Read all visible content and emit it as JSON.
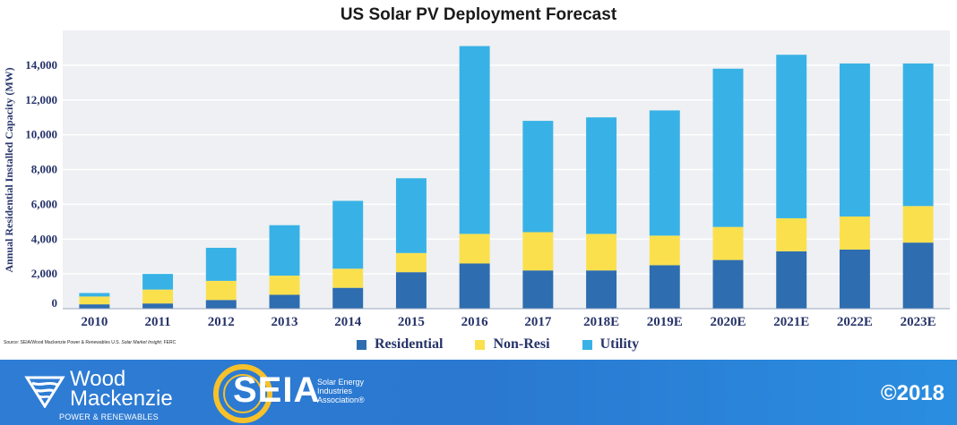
{
  "chart_data": {
    "type": "bar",
    "stacked": true,
    "title": "US Solar PV Deployment Forecast",
    "xlabel": "",
    "ylabel": "Annual Residential Installed Capacity (MW)",
    "ylim": [
      0,
      16000
    ],
    "yticks": [
      0,
      2000,
      4000,
      6000,
      8000,
      10000,
      12000,
      14000
    ],
    "ytick_labels": [
      "0",
      "2,000",
      "4,000",
      "6,000",
      "8,000",
      "10,000",
      "12,000",
      "14,000"
    ],
    "grid": true,
    "legend_position": "bottom",
    "categories": [
      "2010",
      "2011",
      "2012",
      "2013",
      "2014",
      "2015",
      "2016",
      "2017",
      "2018E",
      "2019E",
      "2020E",
      "2021E",
      "2022E",
      "2023E"
    ],
    "series": [
      {
        "name": "Residential",
        "color": "#2e6daf",
        "values": [
          250,
          300,
          500,
          800,
          1200,
          2100,
          2600,
          2200,
          2200,
          2500,
          2800,
          3300,
          3400,
          3800
        ]
      },
      {
        "name": "Non-Resi",
        "color": "#fbe04e",
        "values": [
          450,
          800,
          1100,
          1100,
          1100,
          1100,
          1700,
          2200,
          2100,
          1700,
          1900,
          1900,
          1900,
          2100
        ]
      },
      {
        "name": "Utility",
        "color": "#38b2e6",
        "values": [
          200,
          900,
          1900,
          2900,
          3900,
          4300,
          10800,
          6400,
          6700,
          7200,
          9100,
          9400,
          8800,
          8200
        ]
      }
    ]
  },
  "source_note": {
    "prefix": "Source: SEIA/Wood Mackenzie Power & Renewables U.S. ",
    "italic": "Solar Market Insight",
    "suffix": "; FERC"
  },
  "footer": {
    "wm_line1": "Wood",
    "wm_line2": "Mackenzie",
    "wm_sub": "POWER & RENEWABLES",
    "seia_letters": "SEIA",
    "seia_tag1": "Solar Energy",
    "seia_tag2": "Industries",
    "seia_tag3": "Association®",
    "copyright": "©2018",
    "colors": {
      "accent": "#f6c12a",
      "band": "#2b7bd2"
    }
  }
}
